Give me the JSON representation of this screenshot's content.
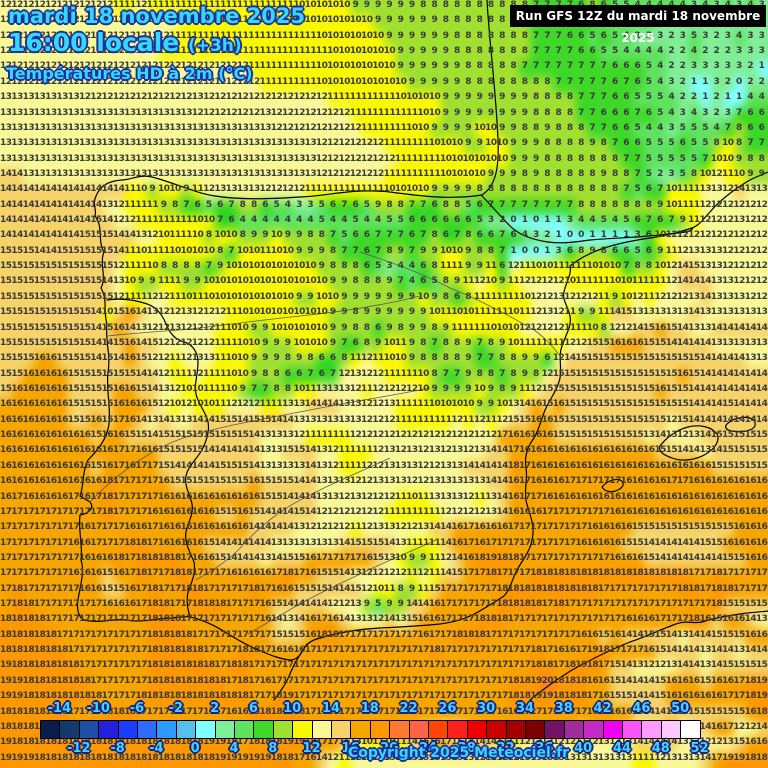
{
  "header": {
    "date_line": "mardi 18 novembre 2025",
    "time_line": "16:00 locale",
    "time_offset": "(+3h)",
    "param_line": "Températures HD à 2m (°C)",
    "run_info": "Run GFS 12Z du mardi 18 novembre 2025"
  },
  "footer": {
    "copyright": "Copyright 2025 Meteociel.fr"
  },
  "legend": {
    "min_value": -16,
    "step": 2,
    "ticks_top": [
      -14,
      -10,
      -6,
      -2,
      2,
      6,
      10,
      14,
      18,
      22,
      26,
      30,
      34,
      38,
      42,
      46,
      50
    ],
    "ticks_bottom": [
      -12,
      -8,
      -4,
      0,
      4,
      8,
      12,
      16,
      20,
      24,
      28,
      32,
      36,
      40,
      44,
      48,
      52
    ],
    "cell_colors": [
      "#0a1c4d",
      "#123a6e",
      "#1e4fa8",
      "#2222dd",
      "#1a3cff",
      "#2e6bff",
      "#2e9aff",
      "#55bff0",
      "#80ffff",
      "#80ee96",
      "#5fe35f",
      "#3fd828",
      "#a0e030",
      "#f8f800",
      "#f8f896",
      "#f5d369",
      "#f7a600",
      "#ff9800",
      "#ff7930",
      "#ff6347",
      "#ff4500",
      "#ff1f1f",
      "#ee0000",
      "#c80000",
      "#a50000",
      "#7d0000",
      "#741166",
      "#a12a9c",
      "#c42ac4",
      "#f000f0",
      "#fa55fa",
      "#fe9bfe",
      "#fec8fe",
      "#ffffff"
    ]
  },
  "chart_data": {
    "type": "heatmap",
    "title": "Températures HD à 2m (°C) — GFS 12Z mardi 18 novembre 2025, 16:00 locale (+3h)",
    "value_range": [
      -16,
      54
    ],
    "legend_position": "bottom",
    "rows": [
      "12*10 11 11 12 11*9 11*4 10*5 9*6 8*8 8 8 7*4 6 8 6 5 5 4*5 3 4 3 4 3 4 3",
      "12*16 11*6 11*5 10*6 9*6 8*6 8 8 7*3 6*3 5 5 4*3 3*5 2 3*4",
      "12*15 11*7 11*6 10*6 9*6 8*5 8 8 7*3 6 6 5 6 5 4 2 3 3 2 3 5 3 2 3 4 3 3",
      "12*14 11*8 11*7 10*6 9*5 8*5 8 8 7*4 6 6 5 5 4*4 2 2 4 2 2 2 3*3",
      "12*22 11*6 10*7 9*6 8*4 8 7*8 6*3 5 4 2 2 3*5 2 1",
      "12*22 12 11*5 10*8 9*5 8*4 8*4 7*5 6 7 6 5 4 3 2 1 1 3 2 0 2 2",
      "13*7 12*10 13 12*4 12*7 11*6 10*4 9*6 9 9 8*4 7*3 6 6 5*3 4 2 2 1 2 1 1 4 4",
      "13*17 12*5 12 13 12*7 11*6 10 10 9*6 9 9 8*4 7 7 6*3 7 6 5 4 3 4 3 2 3 7 6 6",
      "13*22 13 13 12*8 11*4 10 10 9*4 10 10 9 9 8 8 9 8*3 7 7 6 6 5 4 4 3 5*3 4 7 8 6 6",
      "13*22 13*6 12*6 11*4 10*3 9 9 10 10 9*3 8*4 9 8 7 6 6 5*3 6 5 5 8 10 8 7 7",
      "13*22 13*6 12*7 11*4 10*6 9*3 8*7 7 7 5*5 7 10 10 9 8 8",
      "14 14 13*20 13*6 12*6 11*5 10*4 9 9 9 8 9 8*5 9 8 8 7 5 2 3 5 8 10 12 11 10 9 9",
      "14*11 11 10 9 10 10 9 11 12 13 13 13 13 12*4 11*7 10*4 9*4 8*3 8*10 7 5 6 7 10 11 11 13 13 12 14 13 13",
      "14*9 13 12 11 11 11 9 8 7 6 5 6 7 8 8 6 5 4 3 3 5 6 7 6 5 9 8 8 7 7 6 8 8 5 6 7 7 7*6 8*7 9 10 11 11 12*6",
      "14*8 15 14 12 12 11*5 10 10 7 6 4 4 4*5 5 4 4 5 4 4 5 5 6*6 5 3 2 0 1 0 1 1 3 4 4 5 4 5 6 7 6 7 9 11 12*3 13 12 12",
      "14*7 15*3 14 14 13 12 10 11 11 10 8 10 10 8 9 9 10 9 9 8 8 7 5 6 6 7*3 6 7 8 6 7 8 6 6 7 6 4 3 2 1 0 0 1*4 3 6 10 12*9",
      "15*3 14 14 15*5 14 11 10 11 11 10*4 8 7 10 10 11 10 10 9 9 9 8 7 7 6 7 8 9 7 9 9 10 10 9 8 8 7 1 0 0 1 3 6 8 9 8 6 6 5 6 9 11 12 13 13 13 12*4",
      "15*10 12 11 11 10 8 8 8 8 7 9 10 10 10*6 9 8 8 8 6 5 3 4 4 6 8 11 11 9 9 11 6 12 11 10 10 11*3 10*3 7 8 8 10 12 14 15 13 13 12*4",
      "15*9 14 13 10 9 9 11 11 9 9 10*4 10*7 9 9 8 8 8 9 7 4 6 5 8 9 11 12 10 9 11 12*4 10 11*3 10 10 11*3 12 14*3 13 13 12*3",
      "15*10 12 11 11 12 12 11 10 11 10*4 10*4 9 9 10 10 9*7 10 9 8 6 8 11*3 11 10 12 12 13 12*3 11 9 10 12 11 12*3 13 14 13*3 12 12",
      "15*8 14 10 15 16 14 13 12 12 13 12*3 11 10 10*7 9 9 8 9*6 10 11 10 10 11 11 11 10 11 12 13 12 11 9 9 11 14 15 13*5 14 13*4",
      "15*8 14 15 16 14 13 12 12 13 12*3 11 10 10 9 9 10*5 9 9 8 8 6 9 8 9 9 8 9 11*3 10 10 10 12*4 11 11 10 8 12 12 14 15 16 15 14 13 13 14*5",
      "15*8 14 14 15 16 14 15 12*5 11 11 10 10 9*3 10*3 9 7 6 8 9 10 11 9 8 7 8 8 9 7 8 9 10 11*4 12 12 15 15 16*3 15 15 14*4 13*5",
      "15*3 16 16 15*3 14 15 14 16 15 12 12 11 12 13 13 11 10 10 9*3 8 9 8 6 6 8 11 12 11 10 10 9 8*4 9 7 7 8 8 9 9 6 12 14 15*11 14*4 13*3 14",
      "15 15 16*4 15*6 14 14 12 11 11 12 11 11 10 10 9 8 8 6 6 7 6 7 12 13 12 12 11*3 10 8 7 7 9 8 8 7 8 9 8 12 15*11 16 15 14*6",
      "15 16*5 15*4 16 16 15 14 13 12 10 10 11 11 10 9 7 7 8 8 10 11 13*3 12 11 12*4 10 9*4 10 9 8 9 11 12 15*10 16 15 15 14*7",
      "16*6 15*4 16*3 15 12 10 12 10 10 11 12 12 12 11 11 13 13 14*3 13 13 12 12 13 11*3 10*4 9 9 10 13 14 16 15 16 15*11 14*3 15 14 14",
      "16*6 15 15 16 15 17 16 14 13 14 13 13 14 14 15 15 14 15 15 14 14 13*6 12*3 11*5 12 11 12 11 12 15 15 16 16 15*10 12 15 14*9",
      "16*8 15 16 16 15 15 14 15*8 14 13 13 13 12 11*4 12*13 17 16*4 15*8 13 14 13 12 13 14 15*4",
      "16*10 17 17 16 16 15*4 14*4 14 13 13 15 15 14 13 12 11*3 12 13 12 13 12 13 12 13 12 13 14 14 17 16*12 15 15 14 14 13 14 15*4",
      "16*8 15 16 17 16 17 17 15 14*4 15*3 14 13*4 14 13 12 11 11 12 12 13*3 12 12 13 13 14*4 18 17 16*16 15*5",
      "16*9 18 17*4 16 15*7 16 15*3 14 14 13*3 12 12 13*3 12 12 13*5 14 14 16 17 16*3 17*5 16*4 17 17 16*7",
      "16 17 16*4 17 16 17 18 17*4 16*8 16 15 15 14*3 13 13 12 13 12*3 11 10 11 13*3 12 11 13 14 16 17 17 16*20",
      "17*9 18 17*3 16*6 15 15 16 15 14*3 15 14 12*6 11*5 12*4 13 14 16*3 17*6 16*14",
      "17*7 16 17*3 16 16 17 16*8 14*4 13 12*4 11 12 13 13 12 12 13 14 14 16 17 16*3 17*7 16*4 15*9 16 16",
      "17*6 16 16 17*3 18 18 17 16*4 15 14*3 14 14 13*6 14 15*3 14 13 11*3 14 16 17 16 17*8 16*4 15 15 14*5 15 15 16 16",
      "17*7 16*3 18 17 18*4 17 16 16 15 14 14 14 13 14 15 15 16 17*4 16 15 13 10 9 9 11 12 14 16 18 19 18 18 17*8 16*3 15 14*6 15 15 16 16",
      "17*6 16*3 15 16 17 18 17 17 18 18 17*3 16 16 16 16 17 18 17 16 15 15 14 13 12*4 11 12 11 14 15 17 17 18 17 17 17 18*14 17 17 18 17*4",
      "17 18 17*5 16 16 15 15 16 17 18 17 17 18 18 17*4 18 17 16 16 15*3 14 14 15 12 10 11 8 9 11 15 17*5 18*9 17*7 18 18 17 18 18 17 17",
      "17 18 18 17*6 16*3 17 18 18 17 17 18*3 17 17 17 16 15 14*4 12 12 13 9 5 9 9 14 14 16 17*5 18*4 17 18 17*13 18 15",
      "18*4 17*9 18*3 17*6 17 16 14 13 14 16 17 16 14 13 13 12 14 13 15 16 16 17*3 18*3 17*10 16*3 17*3 18 16 15 16 16 14 13",
      "18*5 17*8 18*4 17*5 17 17 15*3 16 18 18 17*7 16 17 17 18*3 17 17 17*6 16 16 15 16 14 14 15 15 14 13 14 14 15*3 16 16",
      "18*6 17*7 18*5 17*3 18 18 17 16*3 17*11 18 17*5 17*3 18 17 16 16 17 19 18 17*3 16 15 14*3 13 14 14 13 14",
      "19 18*6 17*6 18*5 18 17 18 18 17*23 17 17 18 18 17 18 19 18 17 15 14 13 12 12 13 14 14 13 14 15*4",
      "19 19 18*6 17*5 18*7 17 18 17 16 17*21 18 18 19 20 18*3 16 16 15 14*3 15 16*3 15 16 16 17 18 19",
      "19 19 18*7 17*3 18*10 17 17 18 19 17*19 18 18 19 19 18*3 17 16 15 15 14 14 15 16*5 17 17 18 19",
      "18*6 17*3 18*3 17*8 16 16 18*5 17*17 16 16 17*6 16*4 15 14*3 15*6 16 18 18",
      "18*21 17 18*9 17*6 15 14 13 13 14 16 16 17 17 18 17*3 16 15 16 16 15 14 13 13 14 16 13 14 14 16 17 12 12 14",
      "19 18*17 19 19 18 17 18*3 19 19 18 17 17 15 13 10 11 10 11 14 15 16 17 15 14 14 14 11 11 12*5 11 12 13*3 14*4 13 12*3 13 15 16",
      "19*3 18*16 19*3 19 19 18 18 17 16 14 12 11 12 12 13*9 12*3 12 13*10 11 11 12 13*3 14 17 19 19 18 18"
    ]
  }
}
